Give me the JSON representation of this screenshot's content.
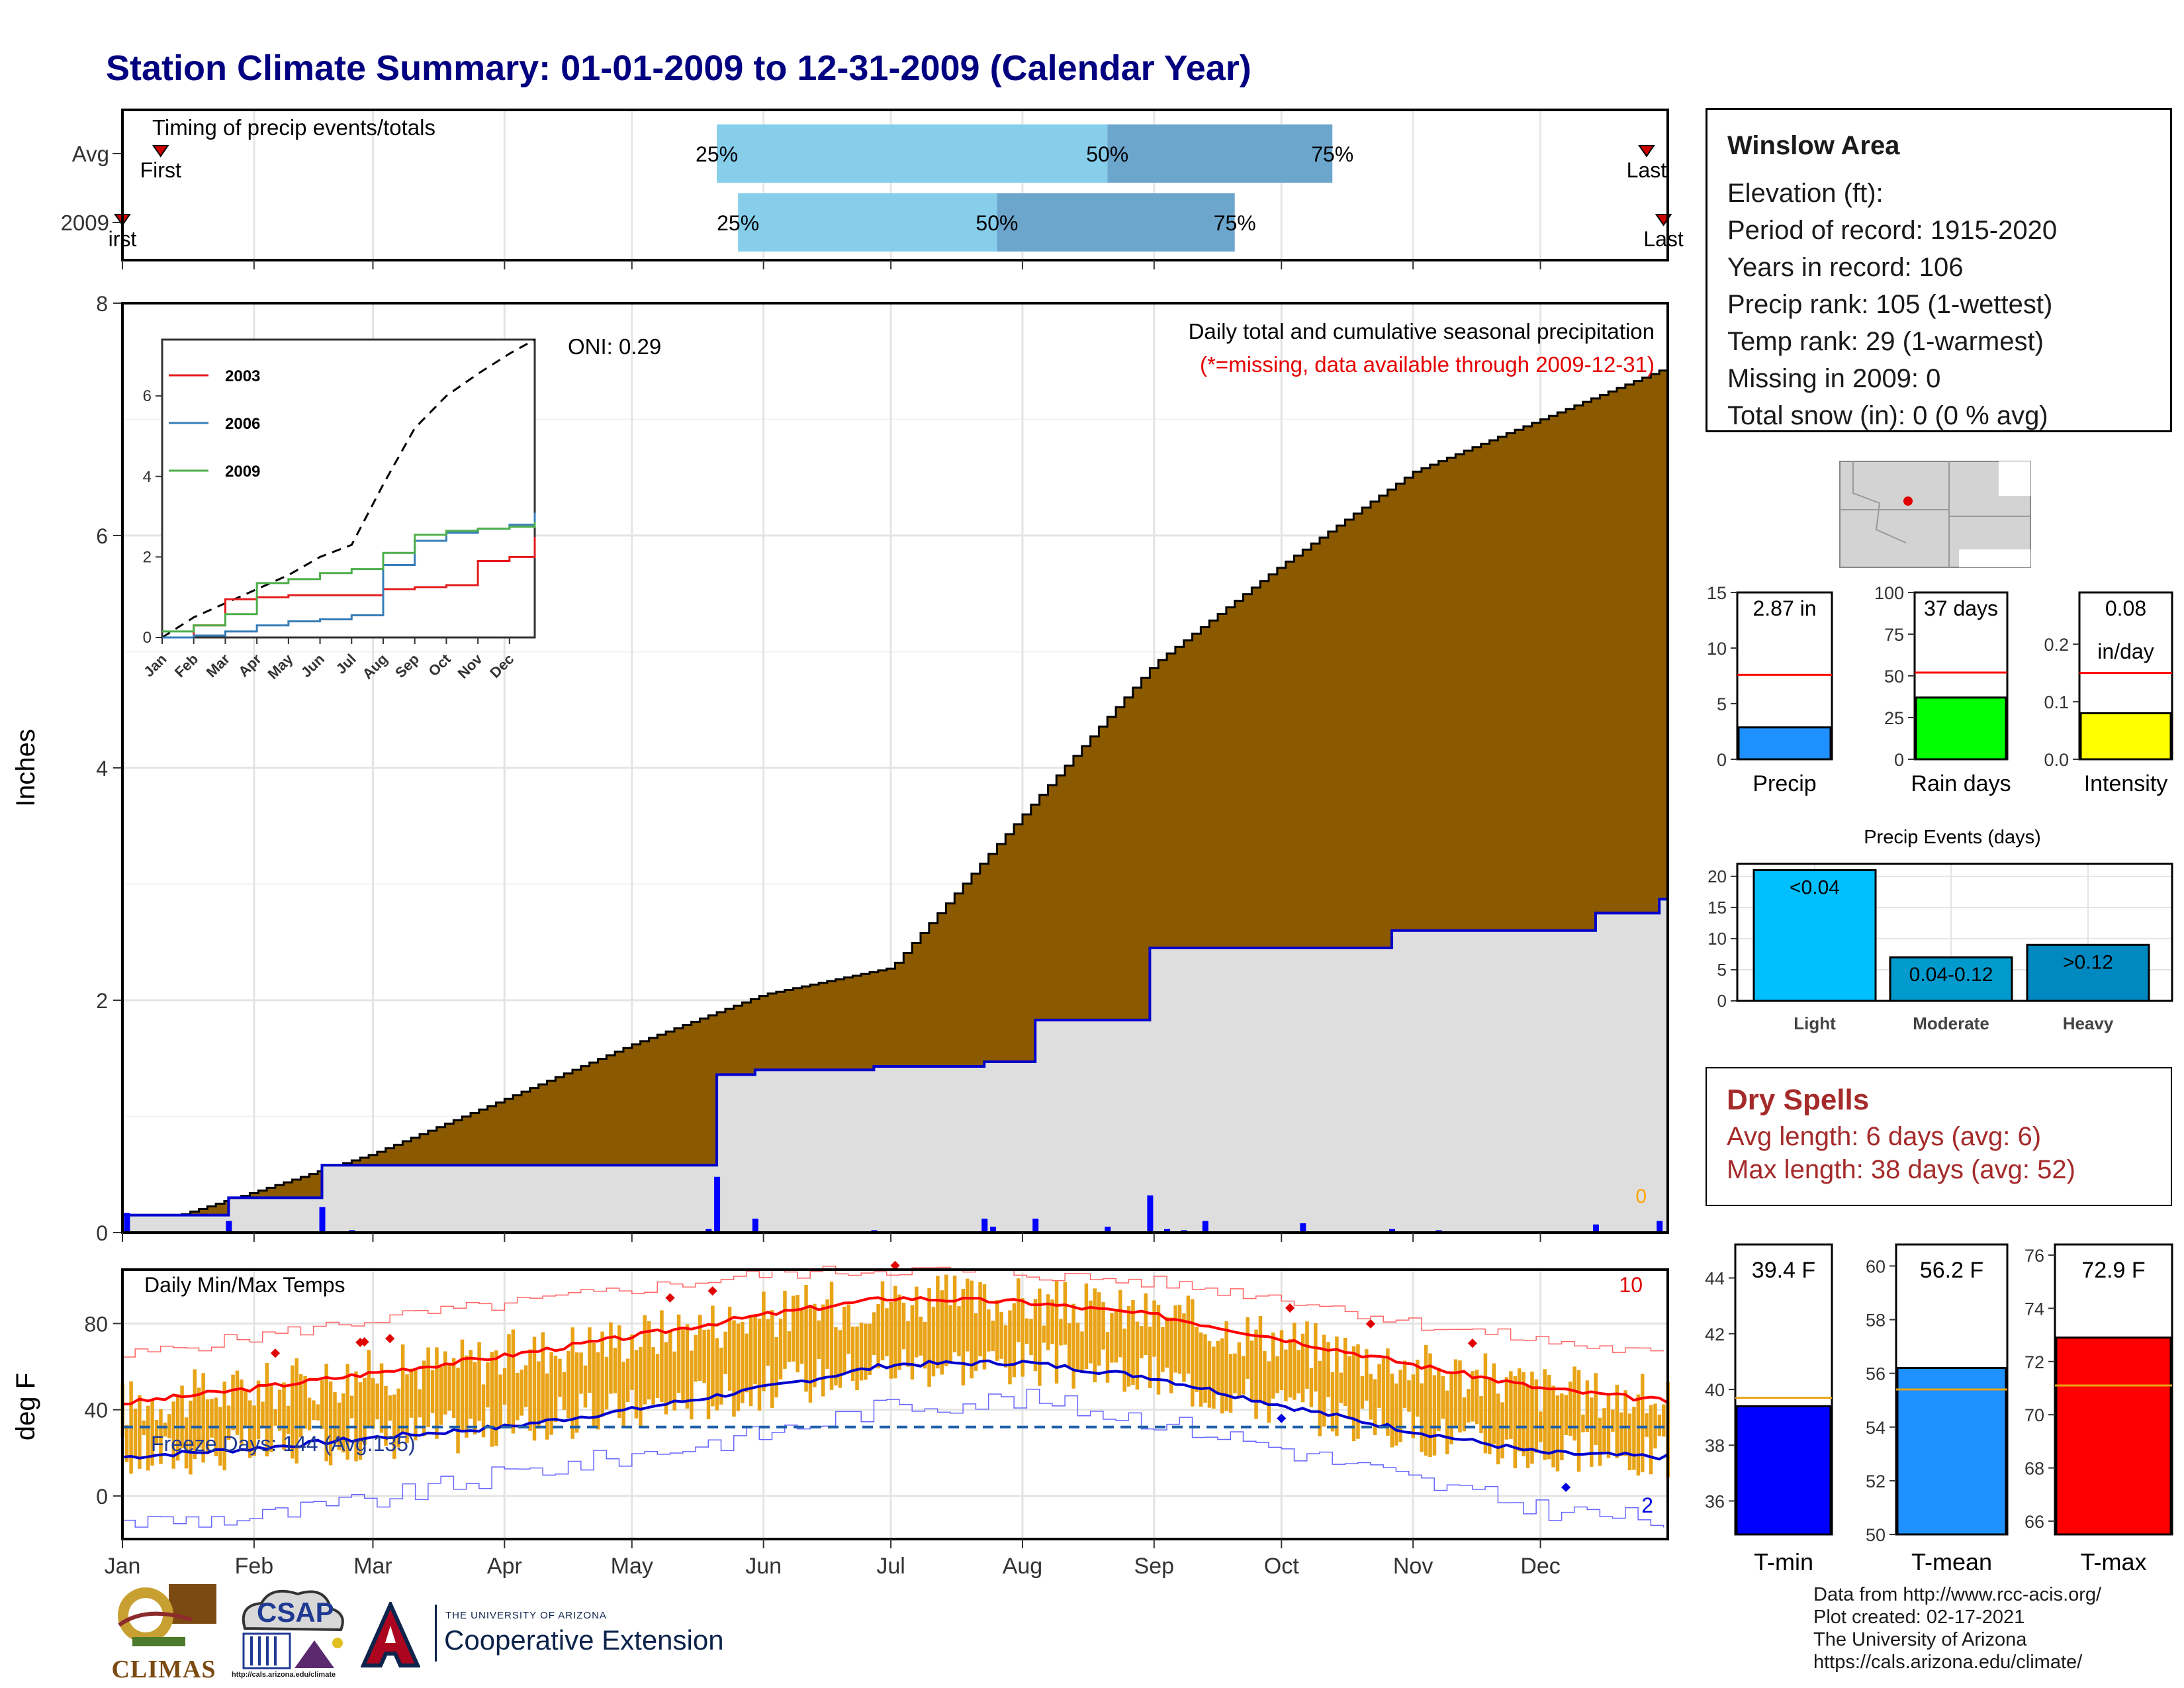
{
  "title": "Station Climate Summary: 01-01-2009 to 12-31-2009 (Calendar Year)",
  "timing": {
    "label": "Timing of precip events/totals",
    "rows": [
      {
        "name": "Avg",
        "first_label": "First",
        "last_label": "Last",
        "first_doy": 10,
        "last_doy": 360,
        "q25_doy": 141,
        "q50_doy": 233,
        "q75_doy": 286,
        "p25_label": "25%",
        "p50_label": "50%",
        "p75_label": "75%"
      },
      {
        "name": "2009",
        "first_label": "irst",
        "last_label": "Last",
        "first_doy": 1,
        "last_doy": 364,
        "q25_doy": 146,
        "q50_doy": 207,
        "q75_doy": 263,
        "p25_label": "25%",
        "p50_label": "50%",
        "p75_label": "75%"
      }
    ]
  },
  "precip_panel": {
    "ylabel": "Inches",
    "ylim": [
      0,
      8
    ],
    "yticks": [
      "0",
      "2",
      "4",
      "6",
      "8"
    ],
    "caption": "Daily total and cumulative seasonal precipitation",
    "missing_note": "(*=missing, data available through 2009-12-31)",
    "missing_count": "0",
    "oni": "ONI: 0.29",
    "colors": {
      "avg_fill": "#8B5A00",
      "year_fill": "#DEDEDE",
      "year_line": "#0000CC",
      "bars": "#0000FF",
      "missing": "#FFA500"
    },
    "months": [
      "Jan",
      "Feb",
      "Mar",
      "Apr",
      "May",
      "Jun",
      "Jul",
      "Aug",
      "Sep",
      "Oct",
      "Nov",
      "Dec"
    ]
  },
  "inset": {
    "yticks": [
      "0",
      "2",
      "4",
      "6"
    ],
    "months": [
      "Jan",
      "Feb",
      "Mar",
      "Apr",
      "May",
      "Jun",
      "Jul",
      "Aug",
      "Sep",
      "Oct",
      "Nov",
      "Dec"
    ],
    "legend": [
      {
        "name": "2003",
        "color": "#E41A1C"
      },
      {
        "name": "2006",
        "color": "#377EB8"
      },
      {
        "name": "2009",
        "color": "#4DAF4A"
      }
    ]
  },
  "station": {
    "name": "Winslow Area",
    "elevation": "Elevation (ft):",
    "period": "Period of record: 1915-2020",
    "years": "Years in record: 106",
    "precip_rank": "Precip rank: 105 (1-wettest)",
    "temp_rank": "Temp rank: 29 (1-warmest)",
    "missing": "Missing in 2009: 0",
    "snow": "Total snow (in): 0 (0 % avg)"
  },
  "summary_bars": [
    {
      "label": "Precip",
      "value_text": "2.87 in",
      "value_text2": "",
      "value": 2.87,
      "avg": 7.6,
      "ymax": 15,
      "yticks": [
        "0",
        "5",
        "10",
        "15"
      ],
      "tickvals": [
        0,
        5,
        10,
        15
      ],
      "color": "#1E90FF"
    },
    {
      "label": "Rain days",
      "value_text": "37 days",
      "value_text2": "",
      "value": 37,
      "avg": 52,
      "ymax": 100,
      "yticks": [
        "0",
        "25",
        "50",
        "75",
        "100"
      ],
      "tickvals": [
        0,
        25,
        50,
        75,
        100
      ],
      "color": "#00FF00"
    },
    {
      "label": "Intensity",
      "value_text": "0.08",
      "value_text2": "in/day",
      "value": 0.08,
      "avg": 0.15,
      "ymax": 0.29,
      "yticks": [
        "0.0",
        "0.1",
        "0.2"
      ],
      "tickvals": [
        0,
        0.1,
        0.2
      ],
      "color": "#FFFF00"
    }
  ],
  "precip_events": {
    "title": "Precip Events (days)",
    "categories": [
      "Light",
      "Moderate",
      "Heavy"
    ],
    "bar_labels": [
      "<0.04",
      "0.04-0.12",
      ">0.12"
    ],
    "values": [
      21,
      7,
      9
    ],
    "ymax": 22,
    "yticks": [
      "0",
      "5",
      "10",
      "15",
      "20"
    ],
    "colors": [
      "#00BFFF",
      "#009ACD",
      "#0089C0"
    ]
  },
  "dry_spells": {
    "title": "Dry Spells",
    "avg": "Avg length: 6 days (avg: 6)",
    "max": "Max length: 38 days (avg: 52)",
    "color": "#A52A2A"
  },
  "temp_panel": {
    "ylabel": "deg F",
    "label": "Daily Min/Max Temps",
    "freeze_label": "Freeze Days: 144 (Avg.135)",
    "record_highs": "10",
    "record_lows": "2",
    "yticks": [
      "0",
      "40",
      "80"
    ],
    "ylim": [
      -20,
      105
    ],
    "freeze_line": 32,
    "colors": {
      "bars": "#E8A317",
      "avg_max": "#FF0000",
      "avg_min": "#0000CC",
      "rec_max": "#FF6666",
      "rec_min": "#6666FF"
    }
  },
  "temp_bars": [
    {
      "label": "T-min",
      "value_text": "39.4 F",
      "value": 39.4,
      "avg": 39.7,
      "ymin": 34.8,
      "ymax": 45.2,
      "yticks": [
        "36",
        "38",
        "40",
        "42",
        "44"
      ],
      "tickvals": [
        36,
        38,
        40,
        42,
        44
      ],
      "color": "#0000FF"
    },
    {
      "label": "T-mean",
      "value_text": "56.2 F",
      "value": 56.2,
      "avg": 55.4,
      "ymin": 50,
      "ymax": 60.8,
      "yticks": [
        "50",
        "52",
        "54",
        "56",
        "58",
        "60"
      ],
      "tickvals": [
        50,
        52,
        54,
        56,
        58,
        60
      ],
      "color": "#1E90FF"
    },
    {
      "label": "T-max",
      "value_text": "72.9 F",
      "value": 72.9,
      "avg": 71.1,
      "ymin": 65.5,
      "ymax": 76.4,
      "yticks": [
        "66",
        "68",
        "70",
        "72",
        "74",
        "76"
      ],
      "tickvals": [
        66,
        68,
        70,
        72,
        74,
        76
      ],
      "color": "#FF0000"
    }
  ],
  "footer": {
    "line1": "Data from http://www.rcc-acis.org/",
    "line2": "Plot created: 02-17-2021",
    "line3": "The University of Arizona",
    "line4": "https://cals.arizona.edu/climate/"
  },
  "logos": {
    "climas": "CLIMAS",
    "csap": "CSAP",
    "csap_url": "http://cals.arizona.edu/climate",
    "ua_small": "THE UNIVERSITY OF ARIZONA",
    "ua_big": "Cooperative Extension",
    "ua_letter": "A"
  },
  "chart_data": [
    {
      "type": "area",
      "title": "Daily total and cumulative seasonal precipitation",
      "ylabel": "Inches",
      "ylim": [
        0,
        8
      ],
      "x": [
        1,
        32,
        60,
        91,
        121,
        152,
        182,
        213,
        244,
        274,
        305,
        335,
        365
      ],
      "series": [
        {
          "values": [
            0.0,
            0.35,
            0.68,
            1.15,
            1.62,
            2.05,
            2.28,
            3.6,
            4.9,
            5.75,
            6.55,
            7.0,
            7.45
          ]
        },
        {
          "name": "2009",
          "values": [
            0.15,
            0.3,
            0.58,
            0.6,
            0.6,
            1.36,
            1.43,
            1.83,
            2.45,
            2.45,
            2.62,
            2.75,
            2.87
          ]
        }
      ],
      "daily_bars": [
        {
          "doy": 2,
          "value": 0.17
        },
        {
          "doy": 26,
          "value": 0.1
        },
        {
          "doy": 48,
          "value": 0.22
        },
        {
          "doy": 55,
          "value": 0.02
        },
        {
          "doy": 139,
          "value": 0.03
        },
        {
          "doy": 141,
          "value": 0.48
        },
        {
          "doy": 150,
          "value": 0.12
        },
        {
          "doy": 178,
          "value": 0.02
        },
        {
          "doy": 204,
          "value": 0.12
        },
        {
          "doy": 206,
          "value": 0.05
        },
        {
          "doy": 216,
          "value": 0.12
        },
        {
          "doy": 233,
          "value": 0.05
        },
        {
          "doy": 243,
          "value": 0.32
        },
        {
          "doy": 247,
          "value": 0.03
        },
        {
          "doy": 251,
          "value": 0.02
        },
        {
          "doy": 256,
          "value": 0.1
        },
        {
          "doy": 279,
          "value": 0.08
        },
        {
          "doy": 300,
          "value": 0.03
        },
        {
          "doy": 311,
          "value": 0.02
        },
        {
          "doy": 348,
          "value": 0.07
        },
        {
          "doy": 363,
          "value": 0.1
        }
      ]
    },
    {
      "type": "line",
      "title": "",
      "x_months": [
        "Jan",
        "Feb",
        "Mar",
        "Apr",
        "May",
        "Jun",
        "Jul",
        "Aug",
        "Sep",
        "Oct",
        "Nov",
        "Dec"
      ],
      "ylim": [
        0,
        7.4
      ],
      "x": [
        0,
        1,
        2,
        3,
        4,
        5,
        6,
        7,
        8,
        9,
        10,
        11,
        11.8
      ],
      "series": [
        {
          "values": [
            0.0,
            0.5,
            0.85,
            1.2,
            1.55,
            2.0,
            2.3,
            3.8,
            5.2,
            6.0,
            6.55,
            7.05,
            7.4
          ]
        },
        {
          "name": "2003",
          "values": [
            0.0,
            0.3,
            0.95,
            1.0,
            1.05,
            1.05,
            1.05,
            1.2,
            1.25,
            1.3,
            1.9,
            2.0,
            2.5
          ]
        },
        {
          "name": "2006",
          "values": [
            0.0,
            0.05,
            0.15,
            0.3,
            0.4,
            0.45,
            0.55,
            1.8,
            2.4,
            2.6,
            2.7,
            2.8,
            3.1
          ]
        },
        {
          "name": "2009",
          "values": [
            0.15,
            0.3,
            0.58,
            1.35,
            1.45,
            1.6,
            1.7,
            2.1,
            2.55,
            2.65,
            2.7,
            2.75,
            2.87
          ]
        }
      ]
    },
    {
      "type": "line",
      "title": "Daily Min/Max Temps",
      "ylabel": "deg F",
      "ylim": [
        -20,
        105
      ],
      "x": [
        1,
        32,
        60,
        91,
        121,
        152,
        182,
        213,
        244,
        274,
        305,
        335,
        365
      ],
      "series": [
        {
          "values": [
            43,
            50,
            57,
            65,
            74,
            84,
            92,
            90,
            84,
            73,
            61,
            50,
            44
          ]
        },
        {
          "values": [
            18,
            22,
            27,
            32,
            40,
            50,
            61,
            62,
            55,
            42,
            30,
            20,
            18
          ]
        },
        {
          "values": [
            65,
            74,
            82,
            89,
            96,
            103,
            105,
            103,
            99,
            92,
            80,
            72,
            65
          ]
        },
        {
          "values": [
            -12,
            -10,
            -2,
            10,
            19,
            29,
            42,
            45,
            35,
            22,
            7,
            -6,
            -12
          ]
        }
      ]
    },
    {
      "type": "bar",
      "title": "Precip Events (days)",
      "categories": [
        "Light",
        "Moderate",
        "Heavy"
      ],
      "values": [
        21,
        7,
        9
      ]
    },
    {
      "type": "bar",
      "categories": [
        "Precip",
        "Rain days",
        "Intensity"
      ],
      "values": [
        2.87,
        37,
        0.08
      ]
    },
    {
      "type": "bar",
      "categories": [
        "T-min",
        "T-mean",
        "T-max"
      ],
      "values": [
        39.4,
        56.2,
        72.9
      ]
    }
  ]
}
